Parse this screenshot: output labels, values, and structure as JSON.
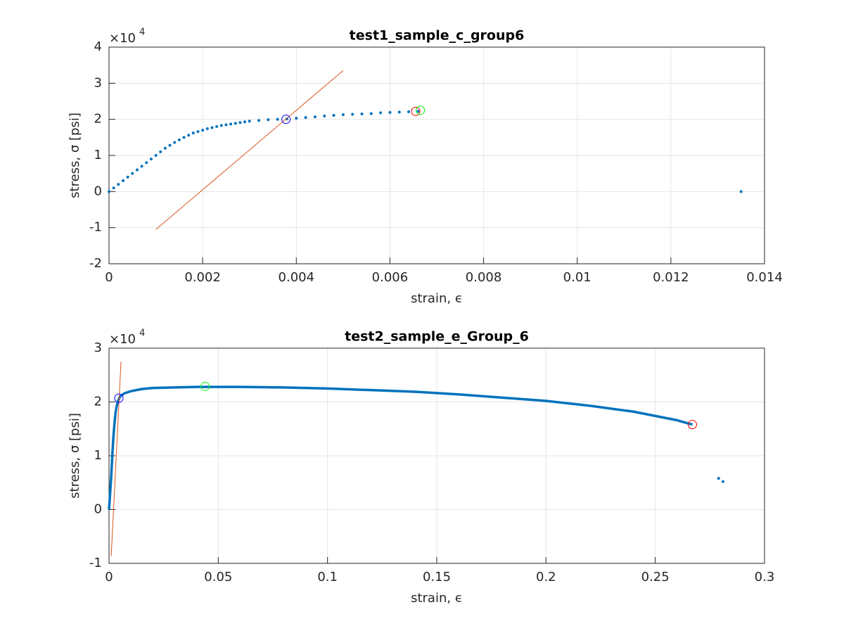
{
  "chart_data": [
    {
      "type": "scatter",
      "title": "test1_sample_c_group6",
      "xlabel": "strain, ϵ",
      "ylabel": "stress, σ [psi]",
      "ymultiplier": "×10",
      "yexponent": "4",
      "xlim": [
        0,
        0.014
      ],
      "ylim": [
        -2,
        4
      ],
      "xticks": [
        0,
        0.002,
        0.004,
        0.006,
        0.008,
        0.01,
        0.012,
        0.014
      ],
      "yticks": [
        -2,
        -1,
        0,
        1,
        2,
        3,
        4
      ],
      "grid": true,
      "series": [
        {
          "style": "dots",
          "color": "#0072bd",
          "x": [
            0,
            0.0001,
            0.0002,
            0.0003,
            0.0004,
            0.0005,
            0.0006,
            0.0007,
            0.0008,
            0.0009,
            0.001,
            0.0011,
            0.0012,
            0.0013,
            0.0014,
            0.0015,
            0.0016,
            0.0017,
            0.0018,
            0.0019,
            0.002,
            0.0021,
            0.0022,
            0.0023,
            0.0024,
            0.0025,
            0.0026,
            0.0027,
            0.0028,
            0.0029,
            0.003,
            0.0032,
            0.0034,
            0.0036,
            0.0038,
            0.004,
            0.0042,
            0.0044,
            0.0046,
            0.0048,
            0.005,
            0.0052,
            0.0054,
            0.0056,
            0.0058,
            0.006,
            0.0062,
            0.0064,
            0.0066,
            0.0135
          ],
          "values": [
            0,
            0.1,
            0.2,
            0.3,
            0.4,
            0.5,
            0.6,
            0.7,
            0.8,
            0.9,
            1.0,
            1.1,
            1.2,
            1.28,
            1.36,
            1.43,
            1.5,
            1.56,
            1.62,
            1.66,
            1.7,
            1.74,
            1.77,
            1.8,
            1.83,
            1.85,
            1.87,
            1.89,
            1.91,
            1.93,
            1.95,
            1.97,
            1.99,
            2.0,
            2.01,
            2.03,
            2.05,
            2.07,
            2.09,
            2.11,
            2.13,
            2.14,
            2.15,
            2.16,
            2.18,
            2.19,
            2.2,
            2.21,
            2.22,
            0
          ]
        },
        {
          "style": "line",
          "width": 1,
          "color": "#d95319",
          "x": [
            0.001,
            0.005
          ],
          "values": [
            -1.05,
            3.35
          ]
        },
        {
          "style": "circle",
          "color": "#0000ff",
          "x": [
            0.00378
          ],
          "values": [
            2.0
          ]
        },
        {
          "style": "circle",
          "color": "#ff0000",
          "x": [
            0.00655
          ],
          "values": [
            2.22
          ]
        },
        {
          "style": "circle",
          "color": "#00ff00",
          "x": [
            0.00665
          ],
          "values": [
            2.25
          ]
        }
      ]
    },
    {
      "type": "scatter",
      "title": "test2_sample_e_Group_6",
      "xlabel": "strain, ϵ",
      "ylabel": "stress, σ [psi]",
      "ymultiplier": "×10",
      "yexponent": "4",
      "xlim": [
        0,
        0.3
      ],
      "ylim": [
        -1,
        3
      ],
      "xticks": [
        0,
        0.05,
        0.1,
        0.15,
        0.2,
        0.25,
        0.3
      ],
      "yticks": [
        -1,
        0,
        1,
        2,
        3
      ],
      "grid": true,
      "series": [
        {
          "style": "line",
          "width": 3.5,
          "color": "#0072bd",
          "x": [
            0,
            0.0005,
            0.001,
            0.0015,
            0.002,
            0.0025,
            0.003,
            0.0035,
            0.004,
            0.005,
            0.007,
            0.01,
            0.015,
            0.02,
            0.03,
            0.04,
            0.06,
            0.08,
            0.1,
            0.12,
            0.14,
            0.16,
            0.18,
            0.2,
            0.22,
            0.24,
            0.26,
            0.267
          ],
          "values": [
            0,
            0.3,
            0.6,
            1.0,
            1.35,
            1.6,
            1.8,
            1.92,
            2.0,
            2.1,
            2.16,
            2.2,
            2.24,
            2.26,
            2.27,
            2.28,
            2.28,
            2.27,
            2.25,
            2.22,
            2.19,
            2.14,
            2.08,
            2.02,
            1.93,
            1.82,
            1.66,
            1.58
          ]
        },
        {
          "style": "dots",
          "color": "#0072bd",
          "x": [
            0.279,
            0.281
          ],
          "values": [
            0.58,
            0.52
          ]
        },
        {
          "style": "line",
          "width": 1,
          "color": "#d95319",
          "x": [
            0.001,
            0.0055
          ],
          "values": [
            -0.86,
            2.75
          ]
        },
        {
          "style": "circle",
          "color": "#0000ff",
          "x": [
            0.0045
          ],
          "values": [
            2.07
          ]
        },
        {
          "style": "circle",
          "color": "#00ff00",
          "x": [
            0.044
          ],
          "values": [
            2.29
          ]
        },
        {
          "style": "circle",
          "color": "#ff0000",
          "x": [
            0.267
          ],
          "values": [
            1.58
          ]
        }
      ]
    }
  ]
}
